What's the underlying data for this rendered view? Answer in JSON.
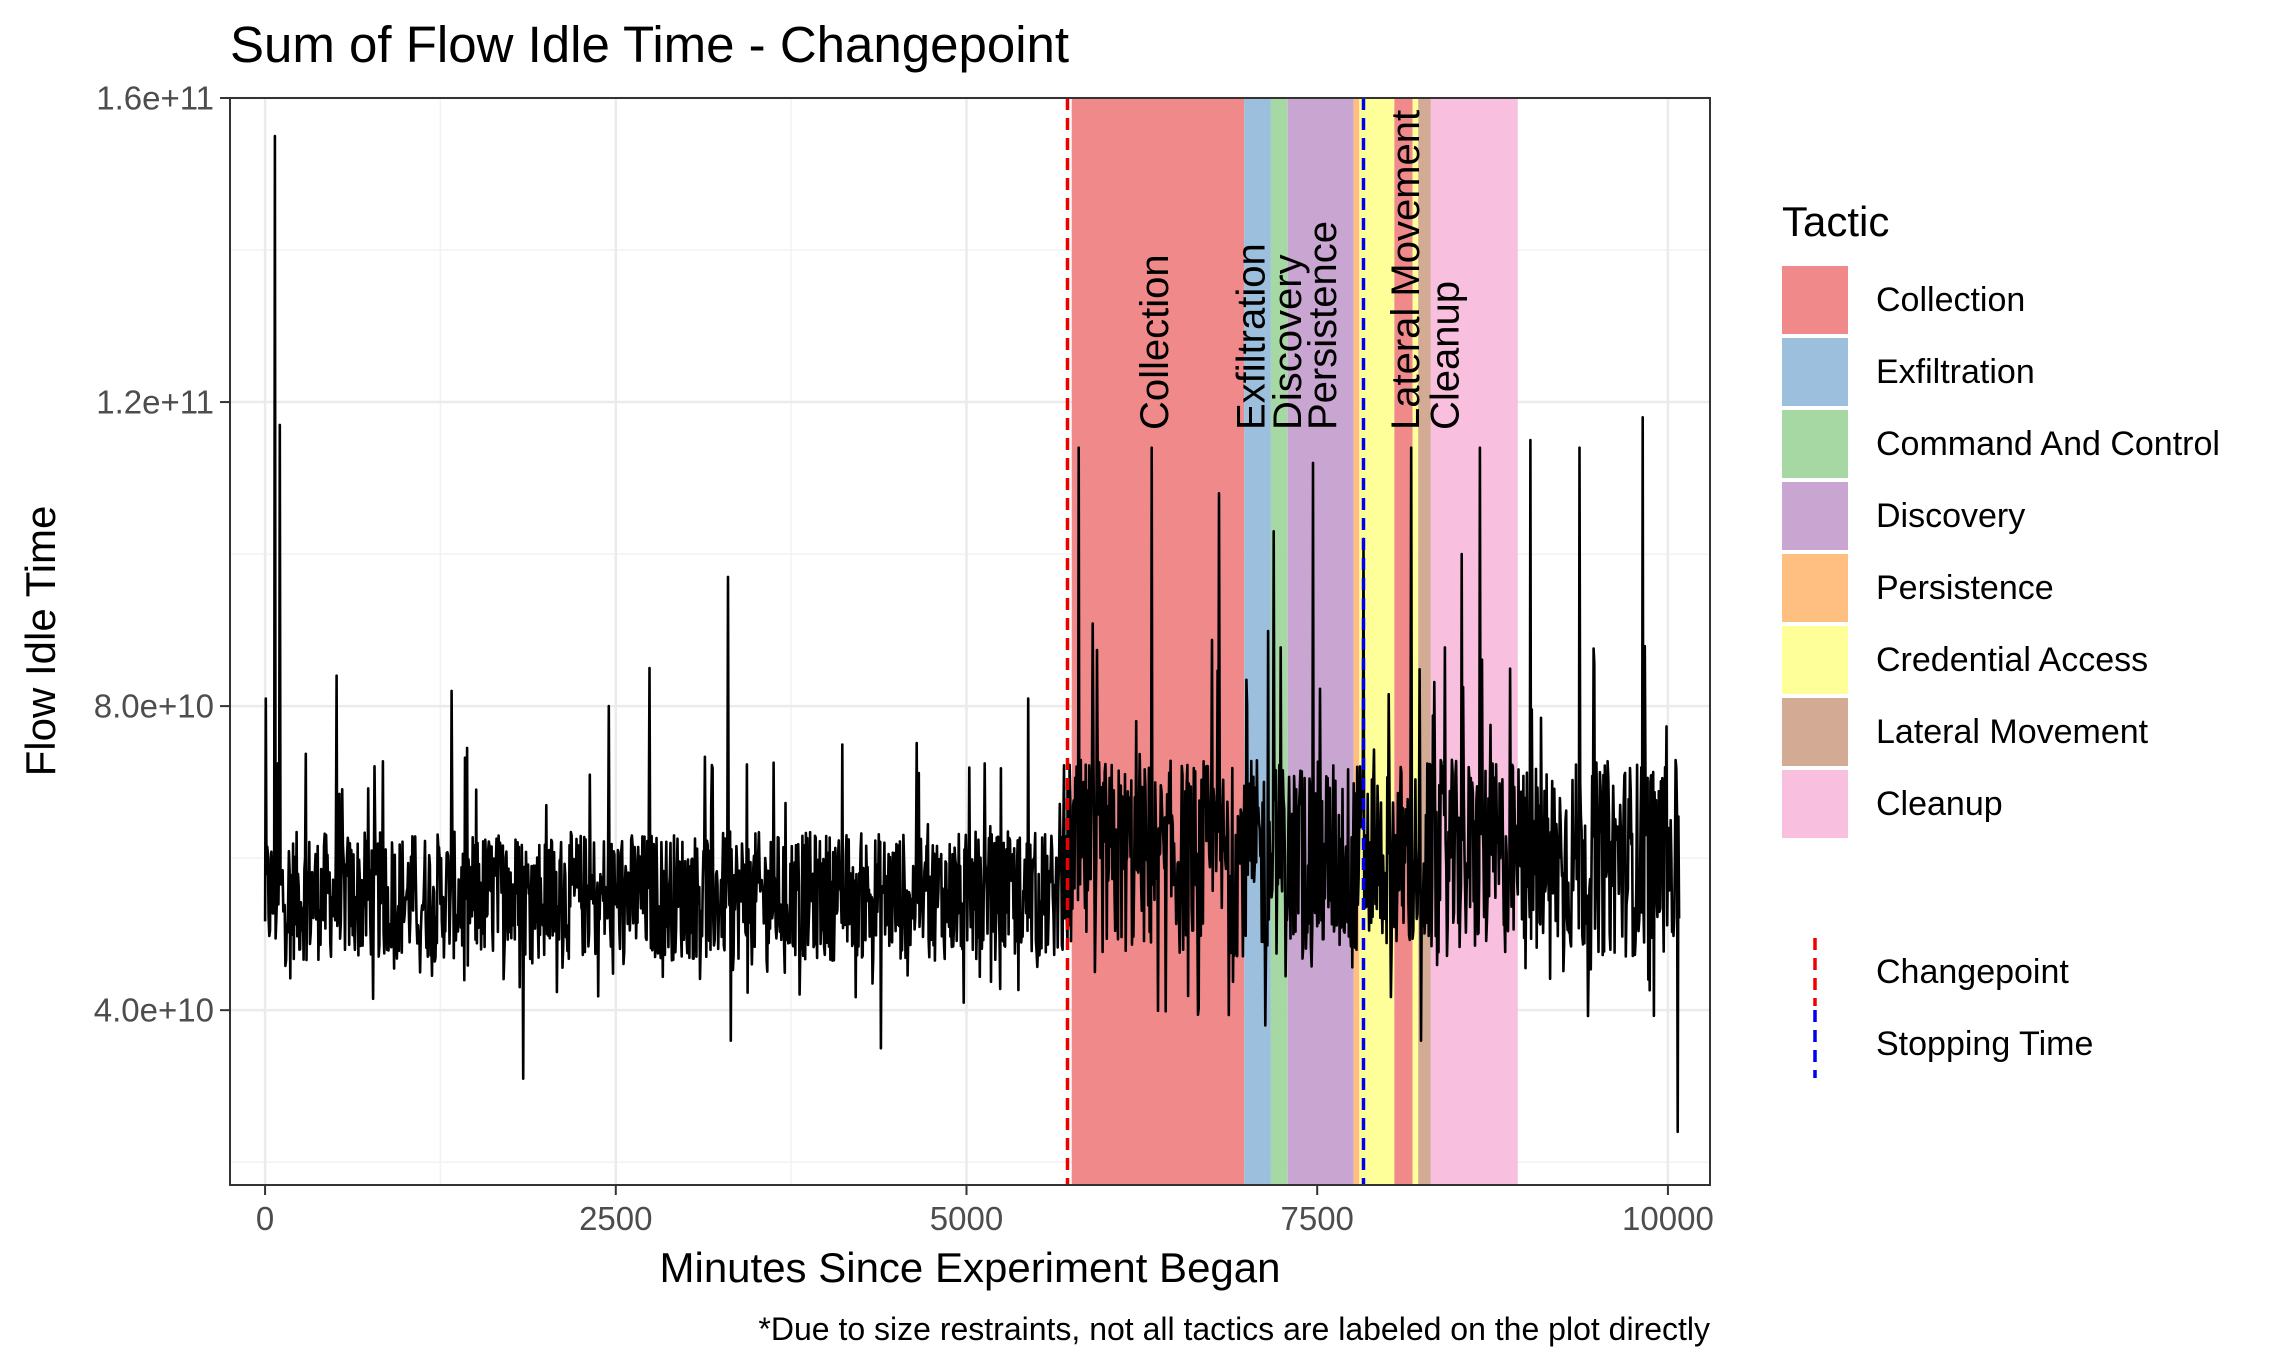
{
  "chart_data": {
    "type": "line",
    "title": "Sum of Flow Idle Time - Changepoint",
    "xlabel": "Minutes Since Experiment Began",
    "ylabel": "Flow Idle Time",
    "caption": "*Due to size restraints, not all tactics are labeled on the plot directly",
    "xlim": [
      -250,
      10300
    ],
    "ylim": [
      17000000000,
      160000000000
    ],
    "x_ticks": [
      0,
      2500,
      5000,
      7500,
      10000
    ],
    "x_tick_labels": [
      "0",
      "2500",
      "5000",
      "7500",
      "10000"
    ],
    "y_ticks": [
      40000000000,
      80000000000,
      120000000000,
      160000000000
    ],
    "y_tick_labels": [
      "4.0e+10",
      "8.0e+10",
      "1.2e+11",
      "1.6e+11"
    ],
    "grid": true,
    "legend_placement": "right",
    "legend": {
      "title": "Tactic",
      "items": [
        {
          "label": "Collection",
          "color": "#f08a8a"
        },
        {
          "label": "Exfiltration",
          "color": "#9bbfdc"
        },
        {
          "label": "Command And Control",
          "color": "#a6d8a3"
        },
        {
          "label": "Discovery",
          "color": "#c9a6d2"
        },
        {
          "label": "Persistence",
          "color": "#ffbf80"
        },
        {
          "label": "Credential Access",
          "color": "#ffff99"
        },
        {
          "label": "Lateral Movement",
          "color": "#d3aa94"
        },
        {
          "label": "Cleanup",
          "color": "#f9bfdf"
        }
      ],
      "lines": [
        {
          "label": "Changepoint",
          "color": "#ee0000"
        },
        {
          "label": "Stopping Time",
          "color": "#0000ee"
        }
      ]
    },
    "bands": [
      {
        "tactic": "Collection",
        "x0": 5750,
        "x1": 6980
      },
      {
        "tactic": "Exfiltration",
        "x0": 6980,
        "x1": 7170
      },
      {
        "tactic": "Command And Control",
        "x0": 7170,
        "x1": 7290
      },
      {
        "tactic": "Discovery",
        "x0": 7290,
        "x1": 7760
      },
      {
        "tactic": "Persistence",
        "x0": 7760,
        "x1": 7800
      },
      {
        "tactic": "Credential Access",
        "x0": 7800,
        "x1": 8050
      },
      {
        "tactic": "Collection",
        "x0": 8050,
        "x1": 8180
      },
      {
        "tactic": "Credential Access",
        "x0": 8180,
        "x1": 8220
      },
      {
        "tactic": "Lateral Movement",
        "x0": 8220,
        "x1": 8310
      },
      {
        "tactic": "Cleanup",
        "x0": 8310,
        "x1": 8930
      }
    ],
    "band_labels": [
      {
        "text": "Collection",
        "x": 6360
      },
      {
        "text": "Exfiltration",
        "x": 7050
      },
      {
        "text": "Discovery",
        "x": 7310
      },
      {
        "text": "Persistence",
        "x": 7560
      },
      {
        "text": "Lateral Movement",
        "x": 8150
      },
      {
        "text": "Cleanup",
        "x": 8430
      }
    ],
    "changepoint_x": 5720,
    "stopping_time_x": 7830,
    "series": [
      {
        "color": "#000000",
        "regimes": [
          {
            "x0": 0,
            "x1": 5720,
            "baseline": 55000000000,
            "spread": 8500000000
          },
          {
            "x0": 5720,
            "x1": 10080,
            "baseline": 60000000000,
            "spread": 13000000000
          }
        ],
        "peaks": [
          {
            "x": 70,
            "y": 155000000000
          },
          {
            "x": 105,
            "y": 117000000000
          },
          {
            "x": 5,
            "y": 81000000000
          },
          {
            "x": 510,
            "y": 84000000000
          },
          {
            "x": 1330,
            "y": 82000000000
          },
          {
            "x": 1840,
            "y": 31000000000
          },
          {
            "x": 2450,
            "y": 80000000000
          },
          {
            "x": 2740,
            "y": 85000000000
          },
          {
            "x": 3300,
            "y": 97000000000
          },
          {
            "x": 3320,
            "y": 36000000000
          },
          {
            "x": 4390,
            "y": 35000000000
          },
          {
            "x": 4980,
            "y": 41000000000
          },
          {
            "x": 5440,
            "y": 81000000000
          },
          {
            "x": 5800,
            "y": 114000000000
          },
          {
            "x": 6320,
            "y": 114000000000
          },
          {
            "x": 6800,
            "y": 108000000000
          },
          {
            "x": 7130,
            "y": 38000000000
          },
          {
            "x": 7190,
            "y": 103000000000
          },
          {
            "x": 7470,
            "y": 112000000000
          },
          {
            "x": 7830,
            "y": 102000000000
          },
          {
            "x": 8170,
            "y": 114000000000
          },
          {
            "x": 8240,
            "y": 36000000000
          },
          {
            "x": 8660,
            "y": 114000000000
          },
          {
            "x": 8530,
            "y": 100000000000
          },
          {
            "x": 9020,
            "y": 115000000000
          },
          {
            "x": 9370,
            "y": 114000000000
          },
          {
            "x": 9820,
            "y": 118000000000
          },
          {
            "x": 10070,
            "y": 24000000000
          }
        ]
      }
    ]
  }
}
